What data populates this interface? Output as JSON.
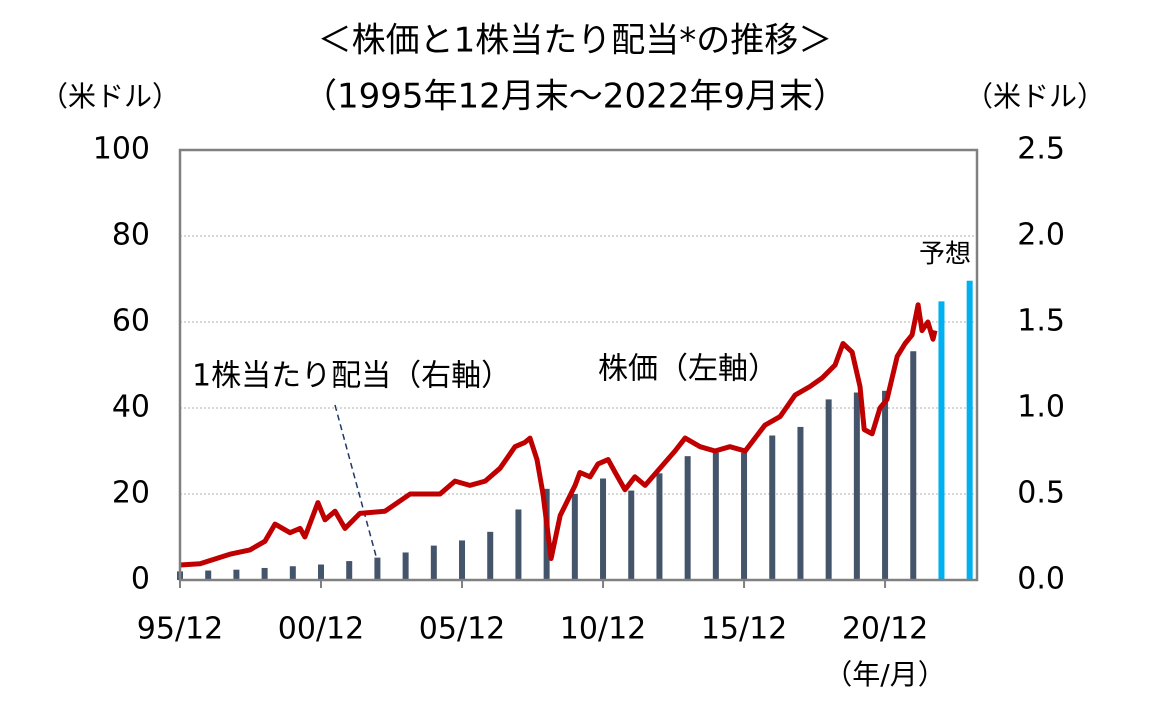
{
  "chart_data": {
    "type": "combo",
    "title": "＜株価と1株当たり配当*の推移＞",
    "subtitle": "（1995年12月末～2022年9月末）",
    "y_label": "（米ドル）",
    "y2_label": "（米ドル）",
    "x_label": "（年/月）",
    "xlim": [
      1995.92,
      2024.18
    ],
    "xticks": [
      {
        "value": 1995.92,
        "label": "95/12"
      },
      {
        "value": 2000.92,
        "label": "00/12"
      },
      {
        "value": 2005.92,
        "label": "05/12"
      },
      {
        "value": 2010.92,
        "label": "10/12"
      },
      {
        "value": 2015.92,
        "label": "15/12"
      },
      {
        "value": 2020.92,
        "label": "20/12"
      }
    ],
    "ylim": [
      0,
      100
    ],
    "yticks": [
      0,
      20,
      40,
      60,
      80,
      100
    ],
    "y2lim": [
      0,
      2.5
    ],
    "y2ticks": [
      {
        "value": 0,
        "label": "0.0"
      },
      0.5,
      {
        "value": 1,
        "label": "1.0"
      },
      1.5,
      {
        "value": 2,
        "label": "2.0"
      },
      2.5
    ],
    "grid": true,
    "series": [
      {
        "name": "株価（左軸）",
        "kind": "line",
        "color": "#c00000",
        "x": [
          1995.92,
          1996.63,
          1997.69,
          1998.4,
          1998.93,
          1999.29,
          1999.82,
          2000.18,
          2000.35,
          2000.81,
          2001.06,
          2001.42,
          2001.77,
          2002.3,
          2003.19,
          2004.08,
          2004.61,
          2005.14,
          2005.67,
          2006.2,
          2006.74,
          2007.27,
          2007.8,
          2008.15,
          2008.33,
          2008.58,
          2008.79,
          2009.08,
          2009.4,
          2009.93,
          2010.1,
          2010.46,
          2010.74,
          2011.1,
          2011.35,
          2011.7,
          2012.05,
          2012.41,
          2012.94,
          2013.47,
          2013.83,
          2014.36,
          2014.89,
          2015.42,
          2015.96,
          2016.31,
          2016.66,
          2017.2,
          2017.73,
          2018.26,
          2018.69,
          2019.15,
          2019.43,
          2019.75,
          2020.03,
          2020.18,
          2020.46,
          2020.74,
          2020.99,
          2021.35,
          2021.63,
          2021.88,
          2022.09,
          2022.23,
          2022.44,
          2022.62,
          2022.69
        ],
        "values": [
          3.5,
          3.8,
          6,
          7,
          9,
          13,
          11,
          12,
          10,
          18,
          14,
          16,
          12,
          15.5,
          16,
          20,
          20,
          20,
          23,
          22,
          23,
          26,
          31,
          32,
          33,
          28,
          20,
          5,
          15,
          22,
          25,
          24,
          27,
          28,
          25,
          21,
          24,
          22,
          26,
          30,
          33,
          31,
          30,
          31,
          30,
          33,
          36,
          38,
          43,
          45,
          47,
          50,
          55,
          53,
          45,
          35,
          34,
          40,
          42,
          52,
          55,
          57,
          64,
          58,
          60,
          56,
          58
        ]
      },
      {
        "name": "1株当たり配当（右軸）",
        "kind": "bar",
        "axis": "y2",
        "color": "#44546a",
        "x": [
          1995.92,
          1996.92,
          1997.92,
          1998.92,
          1999.92,
          2000.92,
          2001.92,
          2002.92,
          2003.92,
          2004.92,
          2005.92,
          2006.92,
          2007.92,
          2008.92,
          2009.92,
          2010.92,
          2011.92,
          2012.92,
          2013.92,
          2014.92,
          2015.92,
          2016.92,
          2017.92,
          2018.92,
          2019.92,
          2020.92,
          2021.92
        ],
        "values": [
          0.05,
          0.055,
          0.06,
          0.07,
          0.08,
          0.09,
          0.11,
          0.13,
          0.16,
          0.2,
          0.23,
          0.28,
          0.41,
          0.53,
          0.5,
          0.59,
          0.52,
          0.62,
          0.72,
          0.74,
          0.74,
          0.84,
          0.89,
          1.05,
          1.09,
          1.1,
          1.33
        ]
      },
      {
        "name": "予想",
        "kind": "bar",
        "axis": "y2",
        "color": "#00b0f0",
        "x": [
          2022.92,
          2023.92
        ],
        "values": [
          1.62,
          1.74
        ]
      }
    ]
  }
}
